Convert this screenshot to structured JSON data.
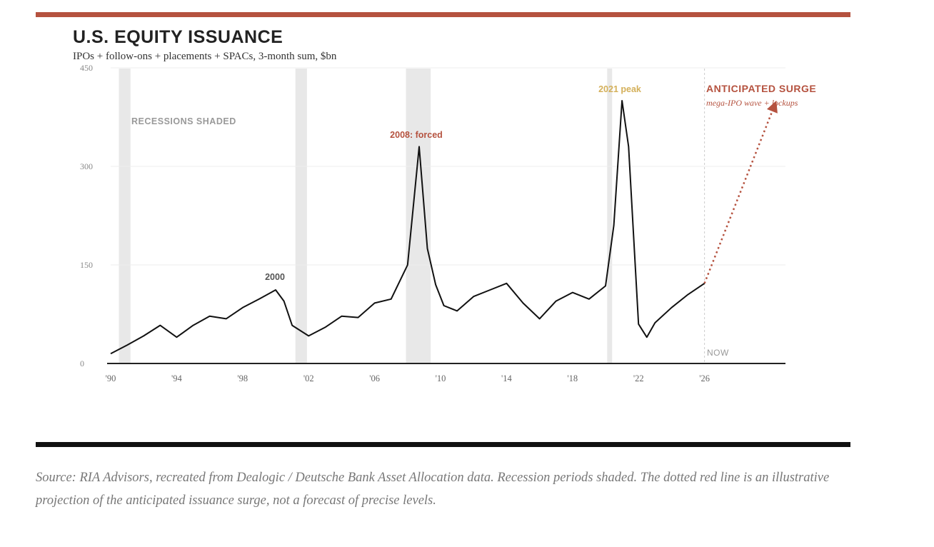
{
  "header": {
    "title": "U.S. EQUITY ISSUANCE",
    "subtitle": "IPOs + follow-ons + placements + SPACs, 3-month sum, $bn"
  },
  "footer": {
    "source": "Source: RIA Advisors, recreated from Dealogic / Deutsche Bank Asset Allocation data. Recession periods shaded. The dotted red line is an illustrative projection of the anticipated issuance surge, not a forecast of precise levels."
  },
  "colors": {
    "accent": "#b5523f",
    "peak_label": "#d4b05a",
    "line": "#111111",
    "recession": "#e8e8e8",
    "gridline": "#eeeeee"
  },
  "chart_data": {
    "type": "line",
    "title": "U.S. EQUITY ISSUANCE",
    "subtitle": "IPOs + follow-ons + placements + SPACs, 3-month sum, $bn",
    "xlim": [
      1990,
      2030.5
    ],
    "ylim": [
      0,
      450
    ],
    "x_ticks": [
      {
        "value": 1990,
        "label": "'90"
      },
      {
        "value": 1994,
        "label": "'94"
      },
      {
        "value": 1998,
        "label": "'98"
      },
      {
        "value": 2002,
        "label": "'02"
      },
      {
        "value": 2006,
        "label": "'06"
      },
      {
        "value": 2010,
        "label": "'10"
      },
      {
        "value": 2014,
        "label": "'14"
      },
      {
        "value": 2018,
        "label": "'18"
      },
      {
        "value": 2022,
        "label": "'22"
      },
      {
        "value": 2026,
        "label": "'26"
      }
    ],
    "y_ticks": [
      {
        "value": 0,
        "label": "0"
      },
      {
        "value": 150,
        "label": "150"
      },
      {
        "value": 300,
        "label": "300"
      },
      {
        "value": 450,
        "label": "450"
      }
    ],
    "grid": true,
    "recessions": [
      {
        "start": 1990.5,
        "end": 1991.2
      },
      {
        "start": 2001.2,
        "end": 2001.9
      },
      {
        "start": 2007.9,
        "end": 2009.4
      },
      {
        "start": 2020.1,
        "end": 2020.4
      }
    ],
    "series": [
      {
        "x": [
          1990,
          1991,
          1992,
          1993,
          1994,
          1995,
          1996,
          1997,
          1998,
          1999,
          2000,
          2000.5,
          2001,
          2002,
          2003,
          2004,
          2005,
          2006,
          2007,
          2008,
          2008.7,
          2009.2,
          2009.7,
          2010.2,
          2011,
          2012,
          2013,
          2014,
          2015,
          2016,
          2017,
          2018,
          2019,
          2020,
          2020.5,
          2021,
          2021.4,
          2022,
          2022.5,
          2023,
          2024,
          2025,
          2026
        ],
        "values": [
          15,
          28,
          42,
          58,
          40,
          58,
          72,
          68,
          85,
          98,
          112,
          95,
          58,
          42,
          55,
          72,
          70,
          92,
          98,
          150,
          330,
          175,
          120,
          88,
          80,
          102,
          112,
          122,
          92,
          68,
          95,
          108,
          98,
          118,
          210,
          400,
          330,
          60,
          40,
          62,
          85,
          105,
          122
        ]
      }
    ],
    "projection": {
      "x": [
        2026,
        2030.2
      ],
      "values": [
        122,
        390
      ]
    },
    "annotations": {
      "recessions_note": "RECESSIONS SHADED",
      "peak_2000": "2000",
      "peak_2008": "2008: forced",
      "peak_2021": "2021 peak",
      "surge_title": "ANTICIPATED SURGE",
      "surge_subtitle": "mega-IPO wave + lockups",
      "now_label": "NOW"
    }
  }
}
